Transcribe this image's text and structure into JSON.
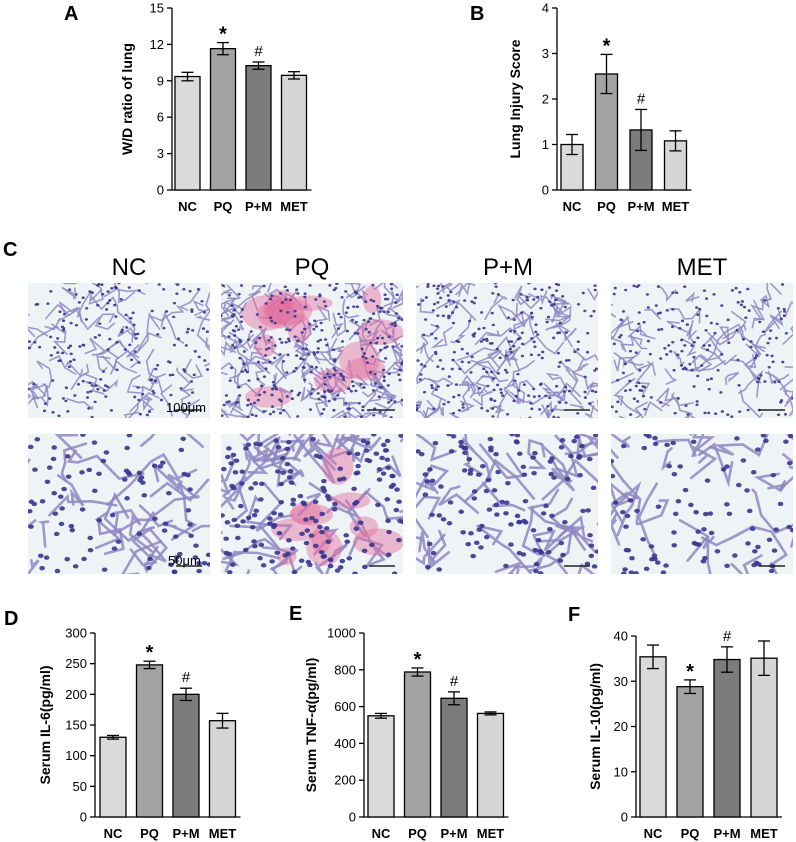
{
  "panels": {
    "A": "A",
    "B": "B",
    "C": "C",
    "D": "D",
    "E": "E",
    "F": "F"
  },
  "colors": {
    "bar_fills": [
      "#dadada",
      "#a3a3a3",
      "#7c7c7c",
      "#d6d6d6"
    ],
    "tissue_bg": "#eef3f6",
    "nuclei": "#39358f",
    "stroma": "#8f86c2",
    "blood": "#e36f9d"
  },
  "chart_data": [
    {
      "id": "A",
      "type": "bar",
      "categories": [
        "NC",
        "PQ",
        "P+M",
        "MET"
      ],
      "values": [
        9.35,
        11.65,
        10.25,
        9.45
      ],
      "errors": [
        0.35,
        0.5,
        0.3,
        0.3
      ],
      "annotations": [
        "",
        "*",
        "#",
        ""
      ],
      "ylabel": "W/D ratio of lung",
      "ylim": [
        0,
        15
      ],
      "yticks": [
        0,
        3,
        6,
        9,
        12,
        15
      ],
      "ytick_labels": [
        "0",
        "3",
        "6",
        "9",
        "12",
        "15"
      ]
    },
    {
      "id": "B",
      "type": "bar",
      "categories": [
        "NC",
        "PQ",
        "P+M",
        "MET"
      ],
      "values": [
        1.0,
        2.55,
        1.32,
        1.08
      ],
      "errors": [
        0.22,
        0.43,
        0.45,
        0.22
      ],
      "annotations": [
        "",
        "*",
        "#",
        ""
      ],
      "ylabel": "Lung Injury Score",
      "ylim": [
        0,
        4
      ],
      "yticks": [
        0,
        1,
        2,
        3,
        4
      ],
      "ytick_labels": [
        "0",
        "1",
        "2",
        "3",
        "4"
      ]
    },
    {
      "id": "D",
      "type": "bar",
      "categories": [
        "NC",
        "PQ",
        "P+M",
        "MET"
      ],
      "values": [
        130,
        248,
        200,
        157
      ],
      "errors": [
        3,
        6,
        10,
        12
      ],
      "annotations": [
        "",
        "*",
        "#",
        ""
      ],
      "ylabel": "Serum IL-6(pg/ml)",
      "ylim": [
        0,
        300
      ],
      "yticks": [
        0,
        50,
        100,
        150,
        200,
        250,
        300
      ],
      "ytick_labels": [
        "0",
        "50",
        "100",
        "150",
        "200",
        "250",
        "300"
      ]
    },
    {
      "id": "E",
      "type": "bar",
      "categories": [
        "NC",
        "PQ",
        "P+M",
        "MET"
      ],
      "values": [
        550,
        788,
        645,
        563
      ],
      "errors": [
        13,
        22,
        35,
        8
      ],
      "annotations": [
        "",
        "*",
        "#",
        ""
      ],
      "ylabel": "Serum TNF-α(pg/ml)",
      "ylim": [
        0,
        1000
      ],
      "yticks": [
        0,
        200,
        400,
        600,
        800,
        1000
      ],
      "ytick_labels": [
        "0",
        "200",
        "400",
        "600",
        "800",
        "1000"
      ]
    },
    {
      "id": "F",
      "type": "bar",
      "categories": [
        "NC",
        "PQ",
        "P+M",
        "MET"
      ],
      "values": [
        35.4,
        28.8,
        34.8,
        35.1
      ],
      "errors": [
        2.6,
        1.5,
        2.8,
        3.8
      ],
      "annotations": [
        "",
        "*",
        "#",
        ""
      ],
      "ylabel": "Serum IL-10(pg/ml)",
      "ylim": [
        0,
        40
      ],
      "yticks": [
        0,
        10,
        20,
        30,
        40
      ],
      "ytick_labels": [
        "0",
        "10",
        "20",
        "30",
        "40"
      ]
    }
  ],
  "histology": {
    "column_headers": [
      "NC",
      "PQ",
      "P+M",
      "MET"
    ],
    "scale_bar_top": "100μm",
    "scale_bar_bottom": "50μm"
  }
}
